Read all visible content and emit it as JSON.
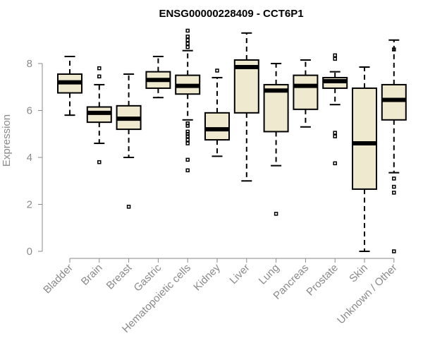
{
  "chart_data": {
    "type": "boxplot",
    "title": "ENSG00000228409 - CCT6P1",
    "xlabel": "",
    "ylabel": "Expression",
    "ylim": [
      0,
      9.5
    ],
    "yticks": [
      0,
      2,
      4,
      6,
      8
    ],
    "box_fill": "#efe9d0",
    "categories": [
      "Bladder",
      "Brain",
      "Breast",
      "Gastric",
      "Hematopoietic cells",
      "Kidney",
      "Liver",
      "Lung",
      "Pancreas",
      "Prostate",
      "Skin",
      "Unknown / Other"
    ],
    "boxes": [
      {
        "name": "Bladder",
        "whisker_low": 5.8,
        "q1": 6.75,
        "median": 7.2,
        "q3": 7.55,
        "whisker_high": 8.3,
        "outliers": []
      },
      {
        "name": "Brain",
        "whisker_low": 4.6,
        "q1": 5.5,
        "median": 5.9,
        "q3": 6.15,
        "whisker_high": 7.1,
        "outliers": [
          3.8,
          7.45,
          7.8
        ]
      },
      {
        "name": "Breast",
        "whisker_low": 4.0,
        "q1": 5.2,
        "median": 5.65,
        "q3": 6.2,
        "whisker_high": 7.55,
        "outliers": [
          1.9
        ]
      },
      {
        "name": "Gastric",
        "whisker_low": 6.55,
        "q1": 6.95,
        "median": 7.3,
        "q3": 7.65,
        "whisker_high": 8.3,
        "outliers": []
      },
      {
        "name": "Hematopoietic cells",
        "whisker_low": 5.6,
        "q1": 6.7,
        "median": 7.05,
        "q3": 7.5,
        "whisker_high": 8.55,
        "outliers": [
          3.45,
          3.9,
          4.6,
          4.75,
          4.9,
          5.0,
          5.1,
          5.35,
          5.45,
          8.7,
          8.85,
          9.0,
          9.15,
          9.4
        ]
      },
      {
        "name": "Kidney",
        "whisker_low": 4.05,
        "q1": 4.75,
        "median": 5.2,
        "q3": 5.9,
        "whisker_high": 7.4,
        "outliers": [
          7.7
        ]
      },
      {
        "name": "Liver",
        "whisker_low": 3.0,
        "q1": 5.9,
        "median": 7.85,
        "q3": 8.15,
        "whisker_high": 9.3,
        "outliers": []
      },
      {
        "name": "Lung",
        "whisker_low": 3.65,
        "q1": 5.1,
        "median": 6.85,
        "q3": 7.1,
        "whisker_high": 8.0,
        "outliers": [
          1.6
        ]
      },
      {
        "name": "Pancreas",
        "whisker_low": 5.3,
        "q1": 6.05,
        "median": 7.05,
        "q3": 7.5,
        "whisker_high": 8.15,
        "outliers": []
      },
      {
        "name": "Prostate",
        "whisker_low": 6.25,
        "q1": 6.95,
        "median": 7.25,
        "q3": 7.4,
        "whisker_high": 7.65,
        "outliers": [
          3.75,
          4.9,
          5.05,
          8.2,
          8.35
        ]
      },
      {
        "name": "Skin",
        "whisker_low": 0.0,
        "q1": 2.65,
        "median": 4.6,
        "q3": 6.95,
        "whisker_high": 7.85,
        "outliers": []
      },
      {
        "name": "Unknown / Other",
        "whisker_low": 3.35,
        "q1": 5.6,
        "median": 6.45,
        "q3": 7.1,
        "whisker_high": 9.0,
        "outliers": [
          0.0,
          2.5,
          2.75,
          3.1,
          8.6
        ]
      }
    ]
  }
}
